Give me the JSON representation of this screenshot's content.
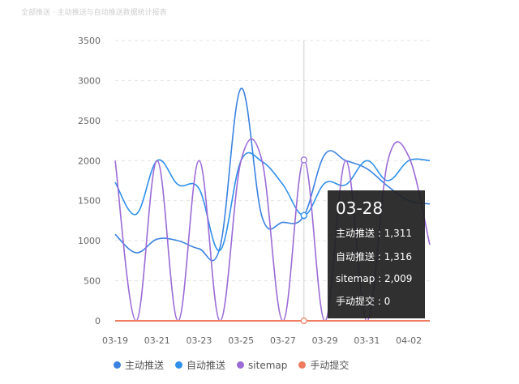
{
  "header": {
    "faded_title": "全部推送 · 主动推送与自动推送数据统计报表"
  },
  "chart_data": {
    "type": "line",
    "x": [
      "03-19",
      "03-20",
      "03-21",
      "03-22",
      "03-23",
      "03-24",
      "03-25",
      "03-26",
      "03-27",
      "03-28",
      "03-29",
      "03-30",
      "03-31",
      "04-01",
      "04-02",
      "04-03"
    ],
    "x_tick_labels": [
      "03-19",
      "03-21",
      "03-23",
      "03-25",
      "03-27",
      "03-29",
      "03-31",
      "04-02"
    ],
    "ylim": [
      0,
      3500
    ],
    "y_ticks": [
      0,
      500,
      1000,
      1500,
      2000,
      2500,
      3000,
      3500
    ],
    "grid": true,
    "legend_position": "bottom",
    "series": [
      {
        "name": "主动推送",
        "color": "#3b82e0",
        "values": [
          1080,
          850,
          1020,
          1000,
          900,
          920,
          2900,
          1300,
          1230,
          1311,
          2080,
          2000,
          1900,
          1680,
          1500,
          1460
        ]
      },
      {
        "name": "自动推送",
        "color": "#2f90ea",
        "values": [
          1730,
          1330,
          2000,
          1700,
          1650,
          880,
          2000,
          1990,
          1700,
          1316,
          1720,
          1700,
          2000,
          1750,
          2000,
          2000
        ]
      },
      {
        "name": "sitemap",
        "color": "#9b6bd6",
        "values": [
          2000,
          0,
          2000,
          0,
          2000,
          0,
          2000,
          2000,
          0,
          2009,
          0,
          2000,
          0,
          2000,
          2050,
          950
        ]
      },
      {
        "name": "手动提交",
        "color": "#f07b5f",
        "values": [
          0,
          0,
          0,
          0,
          0,
          0,
          0,
          0,
          0,
          0,
          0,
          0,
          0,
          0,
          0,
          0
        ]
      }
    ],
    "highlight_index": 9,
    "tooltip": {
      "title": "03-28",
      "rows": [
        "主动推送 : 1,311",
        "自动推送 : 1,316",
        "sitemap : 2,009",
        "手动提交 : 0"
      ]
    }
  }
}
